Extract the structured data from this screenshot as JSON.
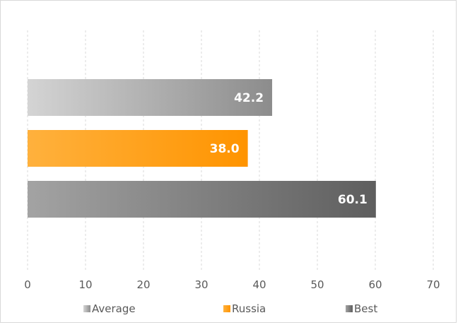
{
  "chart_data": {
    "type": "bar",
    "orientation": "horizontal",
    "series": [
      {
        "name": "Average",
        "value": 42.2,
        "label": "42.2",
        "color": "#a6a6a6"
      },
      {
        "name": "Russia",
        "value": 38.0,
        "label": "38.0",
        "color": "#ff9900"
      },
      {
        "name": "Best",
        "value": 60.1,
        "label": "60.1",
        "color": "#6e6e6e"
      }
    ],
    "xlim": [
      0,
      70
    ],
    "xticks": [
      "0",
      "10",
      "20",
      "30",
      "40",
      "50",
      "60",
      "70"
    ],
    "grid": true,
    "legend_position": "bottom",
    "title": "",
    "xlabel": "",
    "ylabel": ""
  }
}
